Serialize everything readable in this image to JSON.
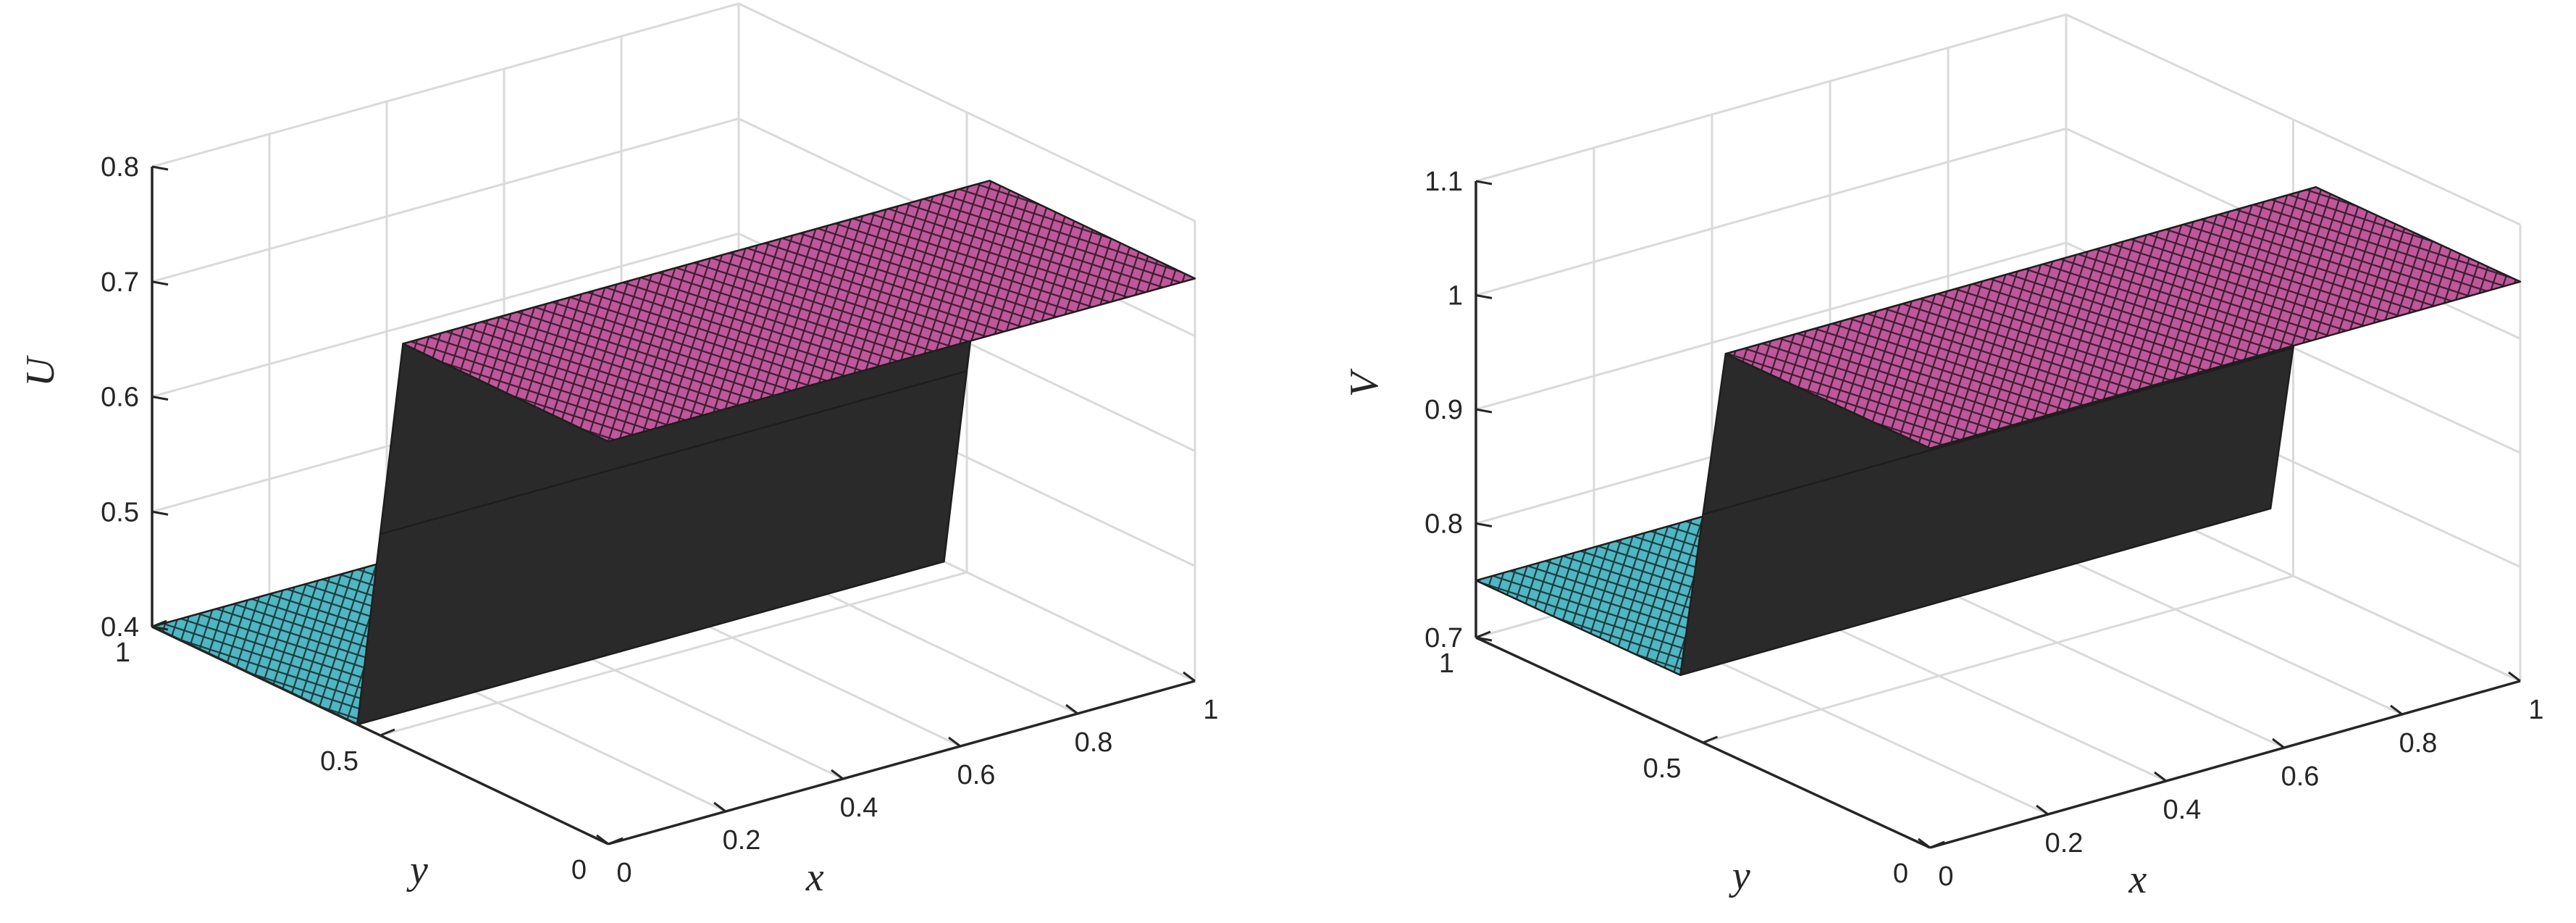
{
  "chart_data": [
    {
      "type": "surface",
      "zlabel": "U",
      "xlabel": "x",
      "ylabel": "y",
      "xlim": [
        0,
        1
      ],
      "ylim": [
        0,
        1
      ],
      "zlim": [
        0.4,
        0.8
      ],
      "x_ticks": [
        "0",
        "0.2",
        "0.4",
        "0.6",
        "0.8",
        "1"
      ],
      "y_ticks": [
        "0",
        "0.5",
        "1"
      ],
      "z_ticks": [
        "0.4",
        "0.5",
        "0.6",
        "0.7",
        "0.8"
      ],
      "grid": true,
      "surface": {
        "description_values": {
          "y_transition": 0.5,
          "z_low": 0.4,
          "z_high": 0.75
        },
        "profile_y": [
          0,
          0.45,
          0.5,
          0.55,
          1
        ],
        "profile_z": [
          0.75,
          0.75,
          0.575,
          0.4,
          0.4
        ]
      },
      "colors": {
        "high": "#c0579a",
        "low": "#4fb7c2",
        "cliff": "#2a2a2a"
      }
    },
    {
      "type": "surface",
      "zlabel": "V",
      "xlabel": "x",
      "ylabel": "y",
      "xlim": [
        0,
        1
      ],
      "ylim": [
        0,
        1
      ],
      "zlim": [
        0.7,
        1.1
      ],
      "x_ticks": [
        "0",
        "0.2",
        "0.4",
        "0.6",
        "0.8",
        "1"
      ],
      "y_ticks": [
        "0",
        "0.5",
        "1"
      ],
      "z_ticks": [
        "0.7",
        "0.8",
        "0.9",
        "1",
        "1.1"
      ],
      "grid": true,
      "surface": {
        "profile_y": [
          0,
          0.45,
          0.5,
          0.55,
          1
        ],
        "profile_z": [
          1.05,
          1.05,
          0.9,
          0.75,
          0.75
        ]
      },
      "colors": {
        "high": "#c0579a",
        "low": "#4fb7c2",
        "cliff": "#2a2a2a"
      }
    }
  ]
}
